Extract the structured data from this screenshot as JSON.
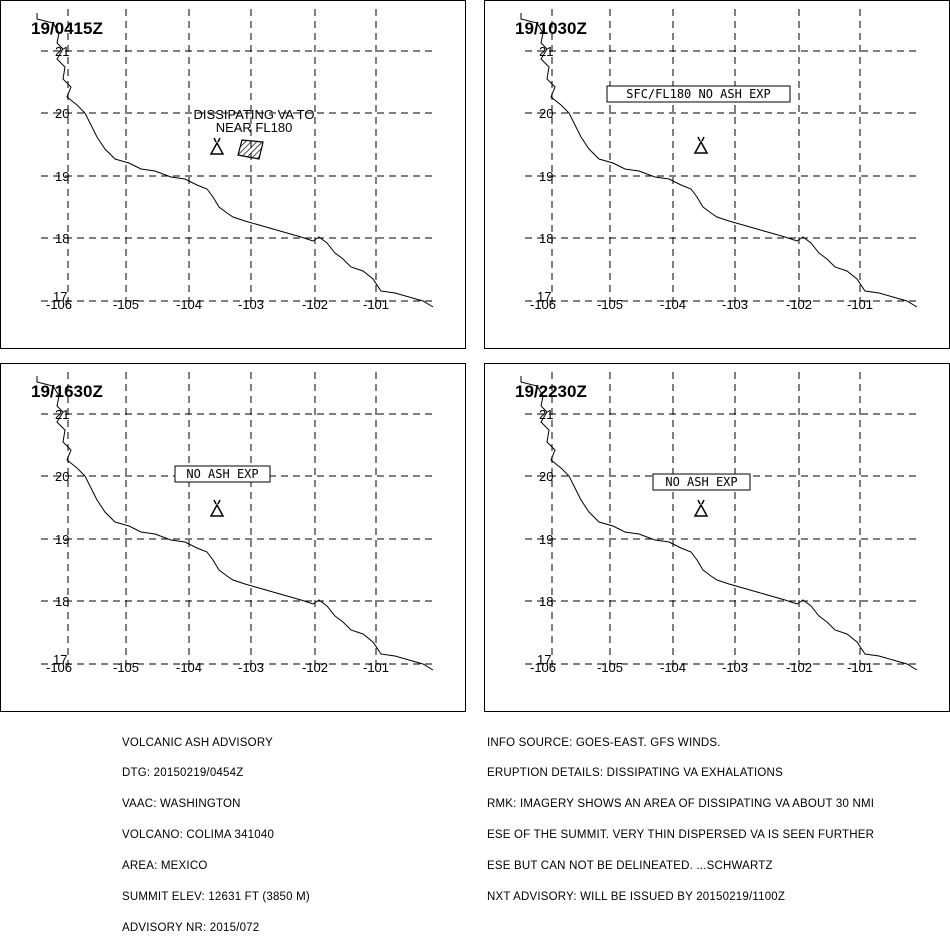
{
  "panels": [
    {
      "time": "19/0415Z",
      "annotation_lines": [
        "DISSIPATING VA TO",
        "NEAR FL180"
      ],
      "boxed": false,
      "has_ash_area": true
    },
    {
      "time": "19/1030Z",
      "annotation_lines": [
        "SFC/FL180 NO ASH EXP"
      ],
      "boxed": true,
      "has_ash_area": false
    },
    {
      "time": "19/1630Z",
      "annotation_lines": [
        "NO ASH EXP"
      ],
      "boxed": true,
      "has_ash_area": false
    },
    {
      "time": "19/2230Z",
      "annotation_lines": [
        "NO ASH EXP"
      ],
      "boxed": true,
      "has_ash_area": false
    }
  ],
  "axes": {
    "lat_labels": [
      "21",
      "20",
      "19",
      "18",
      "17"
    ],
    "lon_labels": [
      "-106",
      "-105",
      "-104",
      "-103",
      "-102",
      "-101"
    ]
  },
  "advisory_left": [
    "VOLCANIC ASH ADVISORY",
    "DTG: 20150219/0454Z",
    "VAAC: WASHINGTON",
    "VOLCANO: COLIMA 341040",
    "AREA: MEXICO",
    "SUMMIT ELEV: 12631 FT (3850 M)",
    "ADVISORY NR: 2015/072"
  ],
  "advisory_right": [
    "INFO SOURCE: GOES-EAST. GFS WINDS.",
    "ERUPTION DETAILS: DISSIPATING VA EXHALATIONS",
    "RMK: IMAGERY SHOWS AN AREA OF DISSIPATING VA ABOUT 30 NMI",
    "ESE OF THE SUMMIT. VERY THIN DISPERSED VA IS SEEN FURTHER",
    "ESE BUT CAN NOT BE DELINEATED. ...SCHWARTZ",
    "NXT ADVISORY: WILL BE ISSUED BY 20150219/1100Z"
  ],
  "icons": {
    "volcano": "volcano-icon",
    "ash_area": "ash-cloud-polygon"
  }
}
